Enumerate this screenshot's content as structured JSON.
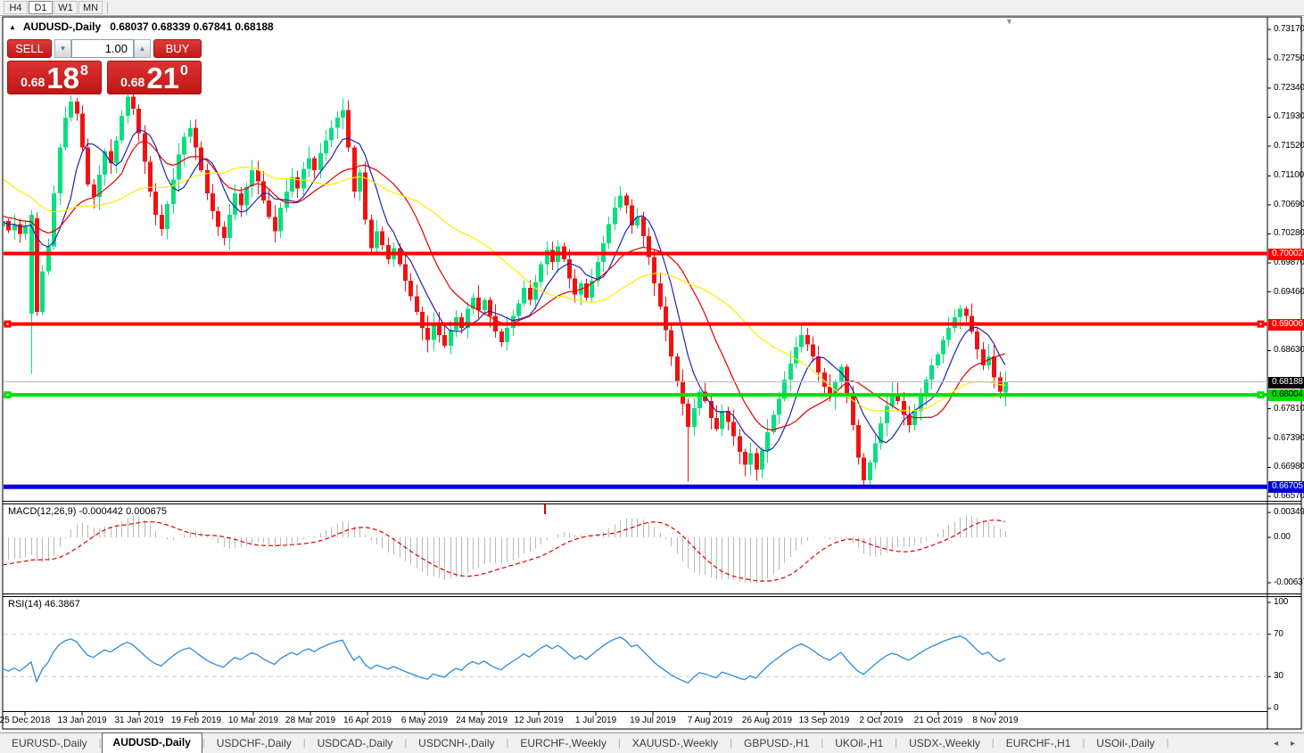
{
  "toolbar": {
    "items": [
      "H4",
      "D1",
      "W1",
      "MN"
    ],
    "active": "D1"
  },
  "icons": {
    "chart_marker": "▲",
    "spinner_down": "▼",
    "spinner_up": "▲",
    "scroll_marker": "▼",
    "tab_scroll_left": "◂",
    "tab_scroll_right": "▸"
  },
  "chart": {
    "symbol_period": "AUDUSD-,Daily",
    "ohlc_line": "0.68037 0.68339 0.67841 0.68188"
  },
  "trade_panel": {
    "sell_label": "SELL",
    "buy_label": "BUY",
    "volume": "1.00",
    "bid": {
      "prefix": "0.68",
      "big": "18",
      "sup": "8"
    },
    "ask": {
      "prefix": "0.68",
      "big": "21",
      "sup": "0"
    }
  },
  "indicators": {
    "macd": {
      "label": "MACD(12,26,9) -0.000442 0.000675",
      "fast": 12,
      "slow": 26,
      "signal": 9,
      "current_main": -0.000442,
      "current_signal": 0.000675,
      "axis_labels": [
        {
          "text": "0.00349",
          "value": 0.00349
        },
        {
          "text": "0.00",
          "value": 0
        },
        {
          "text": "-0.00637",
          "value": -0.00637
        }
      ],
      "histogram_color": "#B8B8B8",
      "signal_color": "#DE0000",
      "spike_tick_x": 611
    },
    "rsi": {
      "label": "RSI(14) 46.3867",
      "period": 14,
      "current": 46.3867,
      "axis_labels": [
        {
          "text": "100",
          "value": 100
        },
        {
          "text": "70",
          "value": 70
        },
        {
          "text": "30",
          "value": 30
        },
        {
          "text": "0",
          "value": 0
        }
      ],
      "levels": [
        70,
        30
      ],
      "line_color": "#2E8BD8",
      "level_color": "#C8C8C8"
    }
  },
  "price_axis": {
    "plain_labels": [
      "0.73170",
      "0.72750",
      "0.72340",
      "0.71930",
      "0.71520",
      "0.71100",
      "0.70690",
      "0.70280",
      "0.69870",
      "0.69460",
      "0.68630",
      "0.67810",
      "0.67390",
      "0.66980",
      "0.66570"
    ],
    "special_labels": [
      {
        "text": "0.70002",
        "price": 0.70002,
        "style": "red"
      },
      {
        "text": "0.69006",
        "price": 0.69006,
        "style": "red"
      },
      {
        "text": "0.68188",
        "price": 0.68188,
        "style": "black"
      },
      {
        "text": "0.68004",
        "price": 0.68004,
        "style": "green"
      },
      {
        "text": "0.66705",
        "price": 0.66705,
        "style": "blue"
      }
    ]
  },
  "tabs": {
    "items": [
      {
        "label": "EURUSD-,Daily",
        "active": false
      },
      {
        "label": "AUDUSD-,Daily",
        "active": true
      },
      {
        "label": "USDCHF-,Daily",
        "active": false
      },
      {
        "label": "USDCAD-,Daily",
        "active": false
      },
      {
        "label": "USDCNH-,Daily",
        "active": false
      },
      {
        "label": "EURCHF-,Weekly",
        "active": false
      },
      {
        "label": "XAUUSD-,Weekly",
        "active": false
      },
      {
        "label": "GBPUSD-,H1",
        "active": false
      },
      {
        "label": "UKOil-,H1",
        "active": false
      },
      {
        "label": "USDX-,Weekly",
        "active": false
      },
      {
        "label": "EURCHF-,H1",
        "active": false
      },
      {
        "label": "USOil-,Daily",
        "active": false
      }
    ]
  },
  "chart_data": {
    "type": "candlestick",
    "title": "AUDUSD-,Daily",
    "current_ohlc": {
      "open": 0.68037,
      "high": 0.68339,
      "low": 0.67841,
      "close": 0.68188
    },
    "bid": 0.68188,
    "ask": 0.6821,
    "x_labels": [
      "25 Dec 2018",
      "13 Jan 2019",
      "31 Jan 2019",
      "19 Feb 2019",
      "10 Mar 2019",
      "28 Mar 2019",
      "16 Apr 2019",
      "6 May 2019",
      "24 May 2019",
      "12 Jun 2019",
      "1 Jul 2019",
      "19 Jul 2019",
      "7 Aug 2019",
      "26 Aug 2019",
      "13 Sep 2019",
      "2 Oct 2019",
      "21 Oct 2019",
      "8 Nov 2019"
    ],
    "ylim": [
      0.6657,
      0.7317
    ],
    "up_color": "#0ADF7E",
    "down_color": "#F01212",
    "moving_averages": [
      {
        "period": 7,
        "color": "#2121BB"
      },
      {
        "period": 16,
        "color": "#E00000"
      },
      {
        "period": 34,
        "color": "#FFEB00"
      }
    ],
    "hlines": [
      {
        "price": 0.70002,
        "color": "#FF0000",
        "width": 4,
        "handles": false
      },
      {
        "price": 0.69006,
        "color": "#FF0000",
        "width": 4,
        "handles": true
      },
      {
        "price": 0.68004,
        "color": "#00E000",
        "width": 4,
        "handles": true
      },
      {
        "price": 0.66705,
        "color": "#0000DD",
        "width": 5,
        "handles": false
      }
    ],
    "current_price_line": {
      "price": 0.68188,
      "color": "#B9B9B9"
    },
    "warmup_closes": [
      0.73,
      0.7285,
      0.7295,
      0.727,
      0.7255,
      0.7268,
      0.7242,
      0.7225,
      0.7238,
      0.7212,
      0.7195,
      0.7208,
      0.7182,
      0.7165,
      0.7178,
      0.7152,
      0.7135,
      0.7148,
      0.7122,
      0.7105,
      0.7118,
      0.7092,
      0.7075,
      0.7088,
      0.7095,
      0.7072,
      0.706,
      0.7075,
      0.7052,
      0.7065,
      0.7042,
      0.7055,
      0.7068,
      0.7048,
      0.706,
      0.704,
      0.7052,
      0.7035,
      0.7045,
      0.7038
    ],
    "closes": [
      0.7046,
      0.7033,
      0.7042,
      0.7028,
      0.704,
      0.7055,
      0.6918,
      0.6975,
      0.701,
      0.7085,
      0.715,
      0.7192,
      0.7215,
      0.7198,
      0.715,
      0.7098,
      0.708,
      0.7112,
      0.7145,
      0.7128,
      0.716,
      0.7195,
      0.7222,
      0.7205,
      0.717,
      0.713,
      0.7088,
      0.7055,
      0.7035,
      0.707,
      0.7105,
      0.714,
      0.7165,
      0.7178,
      0.715,
      0.7118,
      0.7085,
      0.706,
      0.7038,
      0.7022,
      0.7055,
      0.7085,
      0.7068,
      0.7095,
      0.7118,
      0.7102,
      0.7075,
      0.7052,
      0.7032,
      0.7065,
      0.7088,
      0.7108,
      0.7092,
      0.712,
      0.7135,
      0.7118,
      0.7142,
      0.716,
      0.7178,
      0.7192,
      0.7203,
      0.715,
      0.7088,
      0.7115,
      0.7048,
      0.7008,
      0.7032,
      0.7012,
      0.6992,
      0.7008,
      0.6985,
      0.6962,
      0.694,
      0.6918,
      0.6895,
      0.6878,
      0.6902,
      0.6885,
      0.687,
      0.6892,
      0.691,
      0.6895,
      0.6922,
      0.6938,
      0.692,
      0.6935,
      0.6912,
      0.689,
      0.6875,
      0.6895,
      0.6912,
      0.693,
      0.6952,
      0.6935,
      0.696,
      0.6985,
      0.7005,
      0.6988,
      0.701,
      0.6992,
      0.6965,
      0.6942,
      0.6958,
      0.6938,
      0.6962,
      0.6988,
      0.7015,
      0.7042,
      0.7065,
      0.7082,
      0.7068,
      0.704,
      0.7052,
      0.7025,
      0.6995,
      0.6958,
      0.6925,
      0.6892,
      0.6855,
      0.682,
      0.6788,
      0.6755,
      0.6782,
      0.6805,
      0.6792,
      0.6768,
      0.6752,
      0.6778,
      0.6762,
      0.6742,
      0.672,
      0.6702,
      0.6718,
      0.6695,
      0.6722,
      0.6748,
      0.6772,
      0.6795,
      0.6822,
      0.6845,
      0.6868,
      0.6885,
      0.6872,
      0.6855,
      0.6832,
      0.6812,
      0.6798,
      0.6818,
      0.684,
      0.6802,
      0.6758,
      0.6712,
      0.668,
      0.6705,
      0.6732,
      0.676,
      0.6785,
      0.6802,
      0.6792,
      0.6772,
      0.6758,
      0.6778,
      0.68,
      0.6822,
      0.6842,
      0.6858,
      0.6878,
      0.6895,
      0.691,
      0.6922,
      0.6912,
      0.689,
      0.6865,
      0.6842,
      0.6855,
      0.6825,
      0.6805,
      0.68188
    ],
    "ohlc_overrides": {
      "5": [
        0.6915,
        0.7062,
        0.683,
        0.7055
      ],
      "6": [
        0.705,
        0.7058,
        0.6912,
        0.6918
      ],
      "121": [
        0.6788,
        0.6795,
        0.6678,
        0.6755
      ],
      "152": [
        0.6712,
        0.6718,
        0.66705,
        0.668
      ],
      "177": [
        0.68037,
        0.68339,
        0.67841,
        0.68188
      ]
    }
  }
}
